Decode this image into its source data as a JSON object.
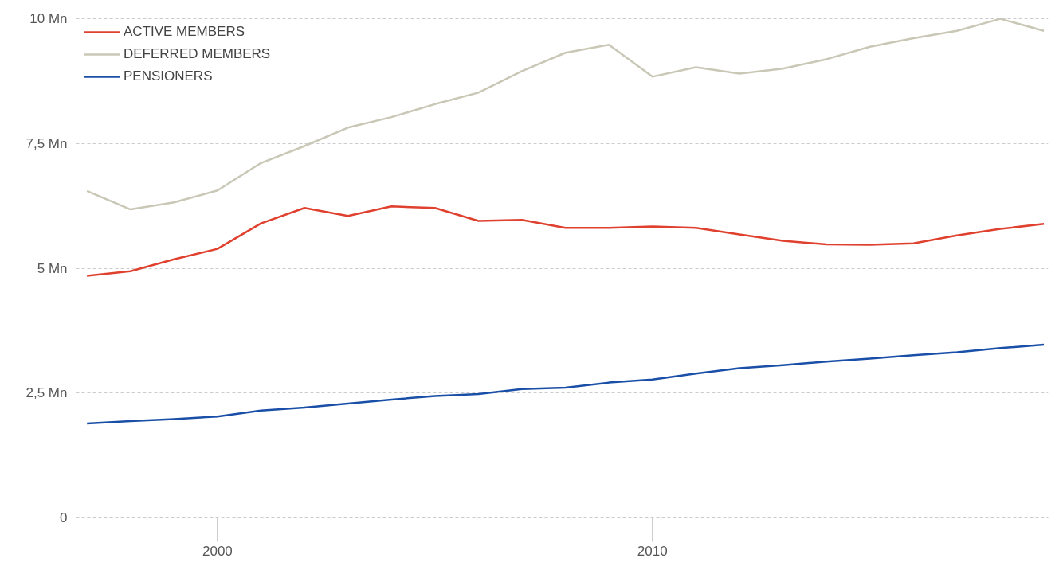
{
  "chart_data": {
    "type": "line",
    "x": [
      1997,
      1998,
      1999,
      2000,
      2001,
      2002,
      2003,
      2004,
      2005,
      2006,
      2007,
      2008,
      2009,
      2010,
      2011,
      2012,
      2013,
      2014,
      2015,
      2016,
      2017,
      2018,
      2019
    ],
    "series": [
      {
        "name": "ACTIVE MEMBERS",
        "color": "#e0402e",
        "values": [
          4.85,
          4.94,
          5.18,
          5.39,
          5.9,
          6.21,
          6.05,
          6.24,
          6.21,
          5.95,
          5.97,
          5.81,
          5.81,
          5.84,
          5.81,
          5.68,
          5.55,
          5.48,
          5.47,
          5.5,
          5.66,
          5.79,
          5.89
        ]
      },
      {
        "name": "DEFERRED MEMBERS",
        "color": "#c9c7b5",
        "values": [
          6.55,
          6.18,
          6.32,
          6.56,
          7.11,
          7.45,
          7.82,
          8.03,
          8.29,
          8.52,
          8.95,
          9.32,
          9.48,
          8.84,
          9.03,
          8.9,
          9.0,
          9.19,
          9.44,
          9.61,
          9.76,
          10.0,
          9.76
        ]
      },
      {
        "name": "PENSIONERS",
        "color": "#1a4fa8",
        "values": [
          1.89,
          1.94,
          1.98,
          2.03,
          2.15,
          2.21,
          2.29,
          2.37,
          2.44,
          2.48,
          2.58,
          2.61,
          2.71,
          2.77,
          2.89,
          3.0,
          3.06,
          3.13,
          3.19,
          3.26,
          3.32,
          3.4,
          3.47
        ]
      }
    ],
    "xlim": [
      1996.75,
      2019.1
    ],
    "xticks": [
      2000,
      2010
    ],
    "ylim": [
      0,
      10.05
    ],
    "yticks": [
      {
        "value": 0,
        "label": "0"
      },
      {
        "value": 2.5,
        "label": "2,5 Mn"
      },
      {
        "value": 5,
        "label": "5 Mn"
      },
      {
        "value": 7.5,
        "label": "7,5 Mn"
      },
      {
        "value": 10,
        "label": "10 Mn"
      }
    ],
    "grid": "y",
    "legend": "top left",
    "marker": "none",
    "line_style": "solid"
  }
}
